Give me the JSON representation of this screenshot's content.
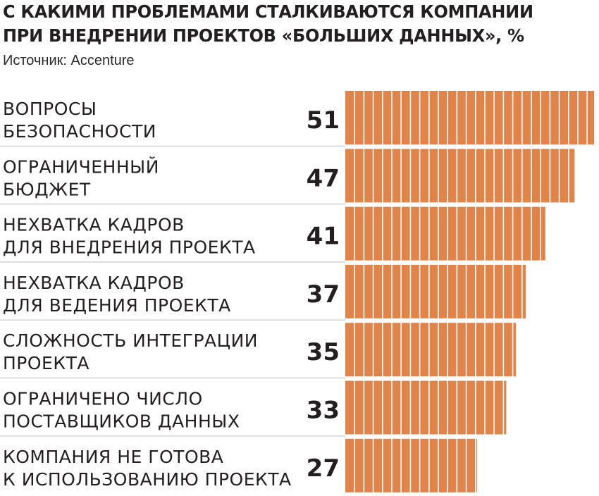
{
  "title_lines": [
    "С КАКИМИ ПРОБЛЕМАМИ СТАЛКИВАЮТСЯ КОМПАНИИ",
    "ПРИ ВНЕДРЕНИИ ПРОЕКТОВ «БОЛЬШИХ ДАННЫХ», %"
  ],
  "source": "Источник: Accenture",
  "colors": {
    "bar": "#e0844a",
    "divider": "#c8c8c8",
    "text": "#231f20"
  },
  "chart_data": {
    "type": "bar",
    "orientation": "horizontal",
    "categories": [
      [
        "ВОПРОСЫ",
        "БЕЗОПАСНОСТИ"
      ],
      [
        "ОГРАНИЧЕННЫЙ",
        "БЮДЖЕТ"
      ],
      [
        "НЕХВАТКА КАДРОВ",
        "ДЛЯ ВНЕДРЕНИЯ ПРОЕКТА"
      ],
      [
        "НЕХВАТКА КАДРОВ",
        "ДЛЯ ВЕДЕНИЯ ПРОЕКТА"
      ],
      [
        "СЛОЖНОСТЬ ИНТЕГРАЦИИ",
        "ПРОЕКТА"
      ],
      [
        "ОГРАНИЧЕНО ЧИСЛО",
        "ПОСТАВЩИКОВ ДАННЫХ"
      ],
      [
        "КОМПАНИЯ НЕ ГОТОВА",
        "К ИСПОЛЬЗОВАНИЮ ПРОЕКТА"
      ]
    ],
    "values": [
      51,
      47,
      41,
      37,
      35,
      33,
      27
    ],
    "data_labels": [
      "51",
      "47",
      "41",
      "37",
      "35",
      "33",
      "27"
    ],
    "unit": "%",
    "grid": false,
    "legend": "none"
  }
}
